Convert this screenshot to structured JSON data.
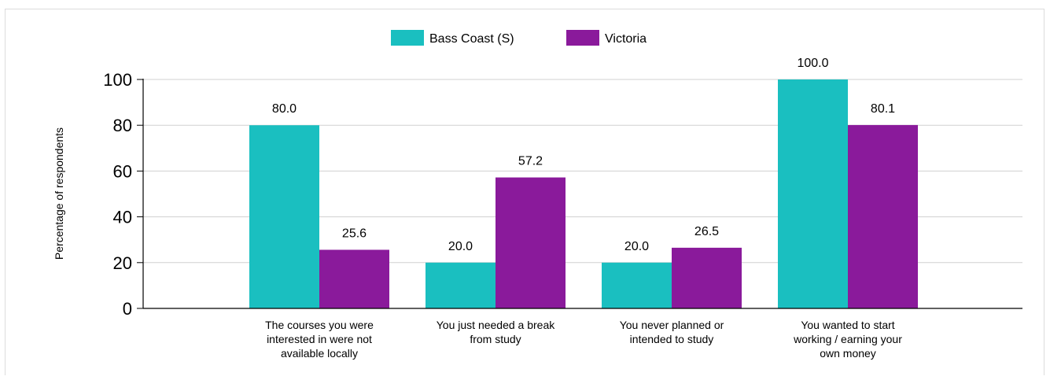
{
  "chart_data": {
    "type": "bar",
    "title": "",
    "xlabel": "",
    "ylabel": "Percentage of respondents",
    "ylim": [
      0,
      100
    ],
    "yticks": [
      0,
      20,
      40,
      60,
      80,
      100
    ],
    "grid": true,
    "legend_position": "top-center",
    "categories": [
      [
        "The courses you were",
        "interested in were not",
        "available locally"
      ],
      [
        "You just needed a break",
        "from study"
      ],
      [
        "You never planned or",
        "intended to study"
      ],
      [
        "You wanted to start",
        "working / earning your",
        "own money"
      ]
    ],
    "series": [
      {
        "name": "Bass Coast (S)",
        "color": "#1abfc0",
        "values": [
          80.0,
          20.0,
          20.0,
          100.0
        ],
        "labels": [
          "80.0",
          "20.0",
          "20.0",
          "100.0"
        ]
      },
      {
        "name": "Victoria",
        "color": "#8a1a9b",
        "values": [
          25.6,
          57.2,
          26.5,
          80.1
        ],
        "labels": [
          "25.6",
          "57.2",
          "26.5",
          "80.1"
        ]
      }
    ]
  }
}
